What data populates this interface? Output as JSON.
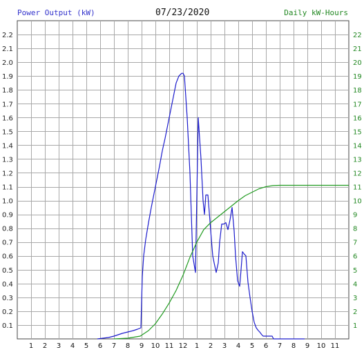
{
  "header": {
    "left_title": "Power Output (kW)",
    "date": "07/23/2020",
    "right_title": "Daily kW-Hours"
  },
  "colors": {
    "power": "#1a1acc",
    "energy": "#1f9a1f",
    "grid": "#a8a8a8",
    "left_axis_text": "#222222",
    "right_axis_text": "#228822"
  },
  "chart_data": {
    "type": "line",
    "title": "07/23/2020",
    "ylabel": "Power Output (kW)",
    "y2label": "Daily kW-Hours",
    "x_ticks": [
      "1",
      "2",
      "3",
      "4",
      "5",
      "6",
      "7",
      "8",
      "9",
      "10",
      "11",
      "12",
      "1",
      "2",
      "3",
      "4",
      "5",
      "6",
      "7",
      "8",
      "9",
      "10",
      "11"
    ],
    "xlim": [
      0,
      24
    ],
    "ylim": [
      0,
      2.3
    ],
    "y2lim": [
      0,
      23
    ],
    "y_ticks": [
      "0.1",
      "0.2",
      "0.3",
      "0.4",
      "0.5",
      "0.6",
      "0.7",
      "0.8",
      "0.9",
      "1.0",
      "1.1",
      "1.2",
      "1.3",
      "1.4",
      "1.5",
      "1.6",
      "1.7",
      "1.8",
      "1.9",
      "2.0",
      "2.1",
      "2.2"
    ],
    "y2_ticks": [
      "1",
      "2",
      "3",
      "4",
      "5",
      "6",
      "7",
      "8",
      "9",
      "10",
      "11",
      "12",
      "13",
      "14",
      "15",
      "16",
      "17",
      "18",
      "19",
      "20",
      "21",
      "22"
    ],
    "grid": true,
    "series": [
      {
        "name": "Power Output (kW)",
        "axis": "left",
        "x": [
          5.8,
          6.6,
          7.0,
          7.3,
          7.6,
          8.0,
          8.4,
          8.7,
          8.95,
          9.05,
          9.15,
          9.3,
          9.5,
          9.7,
          9.9,
          10.1,
          10.3,
          10.5,
          10.7,
          10.9,
          11.1,
          11.3,
          11.5,
          11.7,
          11.9,
          12.0,
          12.1,
          12.3,
          12.5,
          12.7,
          12.9,
          13.1,
          13.3,
          13.45,
          13.55,
          13.65,
          13.8,
          13.95,
          14.05,
          14.15,
          14.25,
          14.4,
          14.55,
          14.65,
          14.8,
          14.95,
          15.1,
          15.25,
          15.4,
          15.55,
          15.7,
          15.8,
          15.95,
          16.1,
          16.2,
          16.3,
          16.45,
          16.55,
          16.7,
          16.85,
          17.0,
          17.15,
          17.3,
          17.45,
          17.55,
          17.7,
          17.8,
          17.95,
          18.05,
          18.15,
          18.3,
          18.45,
          18.55,
          18.7,
          18.85,
          18.95,
          19.05,
          19.2,
          19.35,
          19.5,
          19.7,
          20.0,
          20.4,
          20.8
        ],
        "y": [
          0.0,
          0.01,
          0.02,
          0.03,
          0.04,
          0.05,
          0.06,
          0.07,
          0.08,
          0.45,
          0.6,
          0.72,
          0.84,
          0.95,
          1.05,
          1.15,
          1.25,
          1.36,
          1.45,
          1.55,
          1.65,
          1.75,
          1.85,
          1.9,
          1.92,
          1.92,
          1.9,
          1.6,
          1.2,
          0.6,
          0.48,
          1.6,
          1.3,
          1.0,
          0.9,
          1.04,
          1.04,
          0.85,
          0.72,
          0.6,
          0.55,
          0.48,
          0.55,
          0.7,
          0.83,
          0.83,
          0.84,
          0.79,
          0.86,
          0.95,
          0.78,
          0.6,
          0.42,
          0.38,
          0.5,
          0.63,
          0.61,
          0.6,
          0.41,
          0.3,
          0.2,
          0.12,
          0.08,
          0.06,
          0.05,
          0.03,
          0.02,
          0.02,
          0.02,
          0.02,
          0.02,
          0.02,
          0.0,
          0.0,
          0.0,
          0.0,
          0.0,
          0.0,
          0.0,
          0.0,
          0.0,
          0.0,
          0.0,
          0.0
        ]
      },
      {
        "name": "Daily kW-Hours",
        "axis": "right",
        "x": [
          7.0,
          8.0,
          8.9,
          9.5,
          10.0,
          10.5,
          11.0,
          11.5,
          12.0,
          12.5,
          13.0,
          13.5,
          14.0,
          14.5,
          15.0,
          15.5,
          16.0,
          16.5,
          17.0,
          17.5,
          18.0,
          18.5,
          19.0,
          19.5,
          20.0,
          21.0,
          22.0,
          23.0,
          24.0
        ],
        "y": [
          0.0,
          0.05,
          0.2,
          0.6,
          1.1,
          1.8,
          2.6,
          3.5,
          4.6,
          5.9,
          7.0,
          7.9,
          8.4,
          8.8,
          9.2,
          9.6,
          10.0,
          10.35,
          10.6,
          10.85,
          11.0,
          11.08,
          11.1,
          11.1,
          11.1,
          11.1,
          11.1,
          11.1,
          11.1
        ]
      }
    ]
  }
}
